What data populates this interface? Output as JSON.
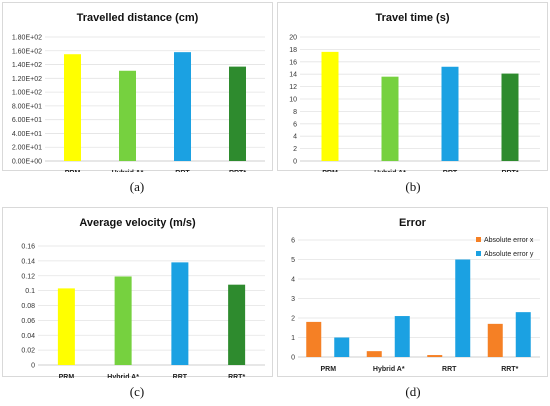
{
  "chart_data": [
    {
      "type": "bar",
      "title": "Travelled distance (cm)",
      "categories": [
        "PRM",
        "Hybrid A*",
        "RRT",
        "RRT*"
      ],
      "values": [
        155,
        131,
        158,
        137
      ],
      "ylim": [
        0,
        180
      ],
      "yticks": [
        0,
        20,
        40,
        60,
        80,
        100,
        120,
        140,
        160,
        180
      ],
      "ytick_labels": [
        "0.00E+00",
        "2.00E+01",
        "4.00E+01",
        "6.00E+01",
        "8.00E+01",
        "1.00E+02",
        "1.20E+02",
        "1.40E+02",
        "1.60E+02",
        "1.80E+02"
      ],
      "colors": [
        "#ffff00",
        "#76d13f",
        "#1ba1e2",
        "#2e8b2e"
      ],
      "caption": "(a)"
    },
    {
      "type": "bar",
      "title": "Travel time (s)",
      "categories": [
        "PRM",
        "Hybrid A*",
        "RRT",
        "RRT*"
      ],
      "values": [
        17.6,
        13.6,
        15.2,
        14.1
      ],
      "ylim": [
        0,
        20
      ],
      "yticks": [
        0,
        2,
        4,
        6,
        8,
        10,
        12,
        14,
        16,
        18,
        20
      ],
      "ytick_labels": [
        "0",
        "2",
        "4",
        "6",
        "8",
        "10",
        "12",
        "14",
        "16",
        "18",
        "20"
      ],
      "colors": [
        "#ffff00",
        "#76d13f",
        "#1ba1e2",
        "#2e8b2e"
      ],
      "caption": "(b)"
    },
    {
      "type": "bar",
      "title": "Average velocity (m/s)",
      "categories": [
        "PRM",
        "Hybrid A*",
        "RRT",
        "RRT*"
      ],
      "values": [
        0.103,
        0.119,
        0.138,
        0.108
      ],
      "ylim": [
        0,
        0.16
      ],
      "yticks": [
        0,
        0.02,
        0.04,
        0.06,
        0.08,
        0.1,
        0.12,
        0.14,
        0.16
      ],
      "ytick_labels": [
        "0",
        "0.02",
        "0.04",
        "0.06",
        "0.08",
        "0.1",
        "0.12",
        "0.14",
        "0.16"
      ],
      "colors": [
        "#ffff00",
        "#76d13f",
        "#1ba1e2",
        "#2e8b2e"
      ],
      "caption": "(c)"
    },
    {
      "type": "bar",
      "title": "Error",
      "categories": [
        "PRM",
        "Hybrid A*",
        "RRT",
        "RRT*"
      ],
      "series": [
        {
          "name": "Absolute error x",
          "values": [
            1.8,
            0.3,
            0.1,
            1.7
          ],
          "color": "#f58025"
        },
        {
          "name": "Absolute error y",
          "values": [
            1.0,
            2.1,
            5.0,
            2.3
          ],
          "color": "#1ba1e2"
        }
      ],
      "ylim": [
        0,
        6
      ],
      "yticks": [
        0,
        1,
        2,
        3,
        4,
        5,
        6
      ],
      "ytick_labels": [
        "0",
        "1",
        "2",
        "3",
        "4",
        "5",
        "6"
      ],
      "legend": "top-right",
      "caption": "(d)"
    }
  ]
}
